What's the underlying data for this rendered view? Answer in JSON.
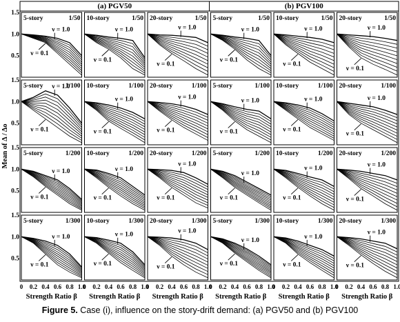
{
  "caption": {
    "label": "Figure 5.",
    "text": " Case (i), influence on the story-drift demand: (a) PGV50 and (b) PGV100"
  },
  "groups": [
    "(a) PGV50",
    "(b) PGV100"
  ],
  "ylabel": "Mean of Δ / Δo",
  "xlabel": "Strength Ratio β",
  "x_ticks": [
    "0",
    "0.2",
    "0.4",
    "0.6",
    "0.8",
    "1.0"
  ],
  "y_ticks": [
    "1.5",
    "1.0",
    "0.5",
    "0"
  ],
  "nu_top": "ν = 1.0",
  "nu_bottom": "ν = 0.1",
  "chart_data": {
    "type": "line",
    "x": [
      0,
      0.2,
      0.4,
      0.6,
      0.8,
      1.0
    ],
    "xlim": [
      0,
      1.0
    ],
    "ylim": [
      0,
      1.5
    ],
    "grid": false,
    "nu_values": [
      0.1,
      0.2,
      0.3,
      0.4,
      0.5,
      0.6,
      0.7,
      0.8,
      0.9,
      1.0
    ],
    "rows": [
      "1/50",
      "1/100",
      "1/200",
      "1/300"
    ],
    "cols": [
      {
        "group": "(a) PGV50",
        "story": "5-story"
      },
      {
        "group": "(a) PGV50",
        "story": "10-story"
      },
      {
        "group": "(a) PGV50",
        "story": "20-story"
      },
      {
        "group": "(b) PGV100",
        "story": "5-story"
      },
      {
        "group": "(b) PGV100",
        "story": "10-story"
      },
      {
        "group": "(b) PGV100",
        "story": "20-story"
      }
    ],
    "panels": [
      {
        "story": "5-story",
        "ratio": "1/50",
        "series": [
          {
            "nu": 0.1,
            "values": [
              1.0,
              0.9,
              0.8,
              0.55,
              0.3,
              0.05
            ]
          },
          {
            "nu": 1.0,
            "values": [
              1.0,
              0.98,
              0.95,
              0.9,
              0.8,
              0.5
            ]
          }
        ]
      },
      {
        "story": "10-story",
        "ratio": "1/50",
        "series": [
          {
            "nu": 0.1,
            "values": [
              1.0,
              0.8,
              0.65,
              0.45,
              0.2,
              0.05
            ]
          },
          {
            "nu": 1.0,
            "values": [
              1.0,
              0.97,
              0.93,
              0.9,
              0.85,
              0.45
            ]
          }
        ]
      },
      {
        "story": "20-story",
        "ratio": "1/50",
        "series": [
          {
            "nu": 0.1,
            "values": [
              1.0,
              0.75,
              0.55,
              0.38,
              0.2,
              0.05
            ]
          },
          {
            "nu": 1.0,
            "values": [
              1.0,
              0.98,
              0.97,
              0.95,
              0.92,
              0.8
            ]
          }
        ]
      },
      {
        "story": "5-story",
        "ratio": "1/50",
        "series": [
          {
            "nu": 0.1,
            "values": [
              1.0,
              0.85,
              0.65,
              0.4,
              0.2,
              0.05
            ]
          },
          {
            "nu": 1.0,
            "values": [
              1.0,
              0.97,
              0.93,
              0.9,
              0.85,
              0.5
            ]
          }
        ]
      },
      {
        "story": "10-story",
        "ratio": "1/50",
        "series": [
          {
            "nu": 0.1,
            "values": [
              1.0,
              0.75,
              0.55,
              0.35,
              0.2,
              0.05
            ]
          },
          {
            "nu": 1.0,
            "values": [
              1.0,
              0.98,
              0.95,
              0.92,
              0.88,
              0.8
            ]
          }
        ]
      },
      {
        "story": "20-story",
        "ratio": "1/50",
        "series": [
          {
            "nu": 0.1,
            "values": [
              1.0,
              0.7,
              0.45,
              0.3,
              0.18,
              0.05
            ]
          },
          {
            "nu": 1.0,
            "values": [
              1.0,
              0.98,
              0.96,
              0.94,
              0.9,
              0.85
            ]
          }
        ]
      },
      {
        "story": "5-story",
        "ratio": "1/100",
        "series": [
          {
            "nu": 0.1,
            "values": [
              1.0,
              0.8,
              0.6,
              0.4,
              0.2,
              0.05
            ]
          },
          {
            "nu": 1.0,
            "values": [
              1.0,
              1.1,
              1.25,
              1.15,
              0.85,
              0.5
            ]
          }
        ]
      },
      {
        "story": "10-story",
        "ratio": "1/100",
        "series": [
          {
            "nu": 0.1,
            "values": [
              1.0,
              0.8,
              0.55,
              0.38,
              0.22,
              0.05
            ]
          },
          {
            "nu": 1.0,
            "values": [
              1.0,
              0.97,
              0.92,
              0.85,
              0.75,
              0.6
            ]
          }
        ]
      },
      {
        "story": "20-story",
        "ratio": "1/100",
        "series": [
          {
            "nu": 0.1,
            "values": [
              1.0,
              0.78,
              0.58,
              0.4,
              0.25,
              0.1
            ]
          },
          {
            "nu": 1.0,
            "values": [
              1.0,
              0.98,
              0.95,
              0.9,
              0.82,
              0.7
            ]
          }
        ]
      },
      {
        "story": "5-story",
        "ratio": "1/100",
        "series": [
          {
            "nu": 0.1,
            "values": [
              1.0,
              0.8,
              0.55,
              0.35,
              0.2,
              0.05
            ]
          },
          {
            "nu": 1.0,
            "values": [
              1.0,
              0.95,
              0.88,
              0.82,
              0.78,
              0.6
            ]
          }
        ]
      },
      {
        "story": "10-story",
        "ratio": "1/100",
        "series": [
          {
            "nu": 0.1,
            "values": [
              1.0,
              0.8,
              0.6,
              0.4,
              0.25,
              0.1
            ]
          },
          {
            "nu": 1.0,
            "values": [
              1.0,
              0.97,
              0.92,
              0.85,
              0.72,
              0.55
            ]
          }
        ]
      },
      {
        "story": "20-story",
        "ratio": "1/100",
        "series": [
          {
            "nu": 0.1,
            "values": [
              1.0,
              0.7,
              0.5,
              0.35,
              0.2,
              0.05
            ]
          },
          {
            "nu": 1.0,
            "values": [
              1.0,
              0.96,
              0.92,
              0.88,
              0.8,
              0.7
            ]
          }
        ]
      },
      {
        "story": "5-story",
        "ratio": "1/200",
        "series": [
          {
            "nu": 0.1,
            "values": [
              1.0,
              0.82,
              0.6,
              0.4,
              0.2,
              0.05
            ]
          },
          {
            "nu": 1.0,
            "values": [
              1.0,
              0.95,
              0.85,
              0.75,
              0.55,
              0.3
            ]
          }
        ]
      },
      {
        "story": "10-story",
        "ratio": "1/200",
        "series": [
          {
            "nu": 0.1,
            "values": [
              1.0,
              0.8,
              0.58,
              0.38,
              0.2,
              0.05
            ]
          },
          {
            "nu": 1.0,
            "values": [
              1.0,
              0.98,
              0.9,
              0.8,
              0.6,
              0.4
            ]
          }
        ]
      },
      {
        "story": "20-story",
        "ratio": "1/200",
        "series": [
          {
            "nu": 0.1,
            "values": [
              1.0,
              0.8,
              0.58,
              0.4,
              0.22,
              0.1
            ]
          },
          {
            "nu": 1.0,
            "values": [
              1.0,
              0.99,
              0.97,
              0.92,
              0.8,
              0.65
            ]
          }
        ]
      },
      {
        "story": "5-story",
        "ratio": "1/200",
        "series": [
          {
            "nu": 0.1,
            "values": [
              1.0,
              0.8,
              0.58,
              0.4,
              0.22,
              0.05
            ]
          },
          {
            "nu": 1.0,
            "values": [
              1.0,
              0.95,
              0.85,
              0.7,
              0.55,
              0.4
            ]
          }
        ]
      },
      {
        "story": "10-story",
        "ratio": "1/200",
        "series": [
          {
            "nu": 0.1,
            "values": [
              1.0,
              0.8,
              0.58,
              0.38,
              0.2,
              0.05
            ]
          },
          {
            "nu": 1.0,
            "values": [
              1.0,
              0.97,
              0.9,
              0.82,
              0.75,
              0.6
            ]
          }
        ]
      },
      {
        "story": "20-story",
        "ratio": "1/200",
        "series": [
          {
            "nu": 0.1,
            "values": [
              1.0,
              0.78,
              0.55,
              0.38,
              0.2,
              0.05
            ]
          },
          {
            "nu": 1.0,
            "values": [
              1.0,
              0.98,
              0.95,
              0.9,
              0.85,
              0.75
            ]
          }
        ]
      },
      {
        "story": "5-story",
        "ratio": "1/300",
        "series": [
          {
            "nu": 0.1,
            "values": [
              1.0,
              0.85,
              0.6,
              0.35,
              0.18,
              0.05
            ]
          },
          {
            "nu": 1.0,
            "values": [
              1.0,
              0.96,
              0.9,
              0.8,
              0.6,
              0.3
            ]
          }
        ]
      },
      {
        "story": "10-story",
        "ratio": "1/300",
        "series": [
          {
            "nu": 0.1,
            "values": [
              1.0,
              0.85,
              0.62,
              0.4,
              0.22,
              0.05
            ]
          },
          {
            "nu": 1.0,
            "values": [
              1.0,
              0.98,
              0.92,
              0.85,
              0.65,
              0.35
            ]
          }
        ]
      },
      {
        "story": "20-story",
        "ratio": "1/300",
        "series": [
          {
            "nu": 0.1,
            "values": [
              1.0,
              0.8,
              0.55,
              0.35,
              0.18,
              0.05
            ]
          },
          {
            "nu": 1.0,
            "values": [
              1.0,
              0.99,
              0.97,
              0.93,
              0.85,
              0.7
            ]
          }
        ]
      },
      {
        "story": "5-story",
        "ratio": "1/300",
        "series": [
          {
            "nu": 0.1,
            "values": [
              1.0,
              0.85,
              0.62,
              0.42,
              0.22,
              0.05
            ]
          },
          {
            "nu": 1.0,
            "values": [
              1.0,
              0.95,
              0.85,
              0.72,
              0.55,
              0.35
            ]
          }
        ]
      },
      {
        "story": "10-story",
        "ratio": "1/300",
        "series": [
          {
            "nu": 0.1,
            "values": [
              1.0,
              0.85,
              0.6,
              0.4,
              0.22,
              0.05
            ]
          },
          {
            "nu": 1.0,
            "values": [
              1.0,
              0.97,
              0.9,
              0.8,
              0.7,
              0.55
            ]
          }
        ]
      },
      {
        "story": "20-story",
        "ratio": "1/300",
        "series": [
          {
            "nu": 0.1,
            "values": [
              1.0,
              0.8,
              0.58,
              0.38,
              0.2,
              0.05
            ]
          },
          {
            "nu": 1.0,
            "values": [
              1.0,
              0.98,
              0.95,
              0.9,
              0.85,
              0.72
            ]
          }
        ]
      }
    ]
  }
}
